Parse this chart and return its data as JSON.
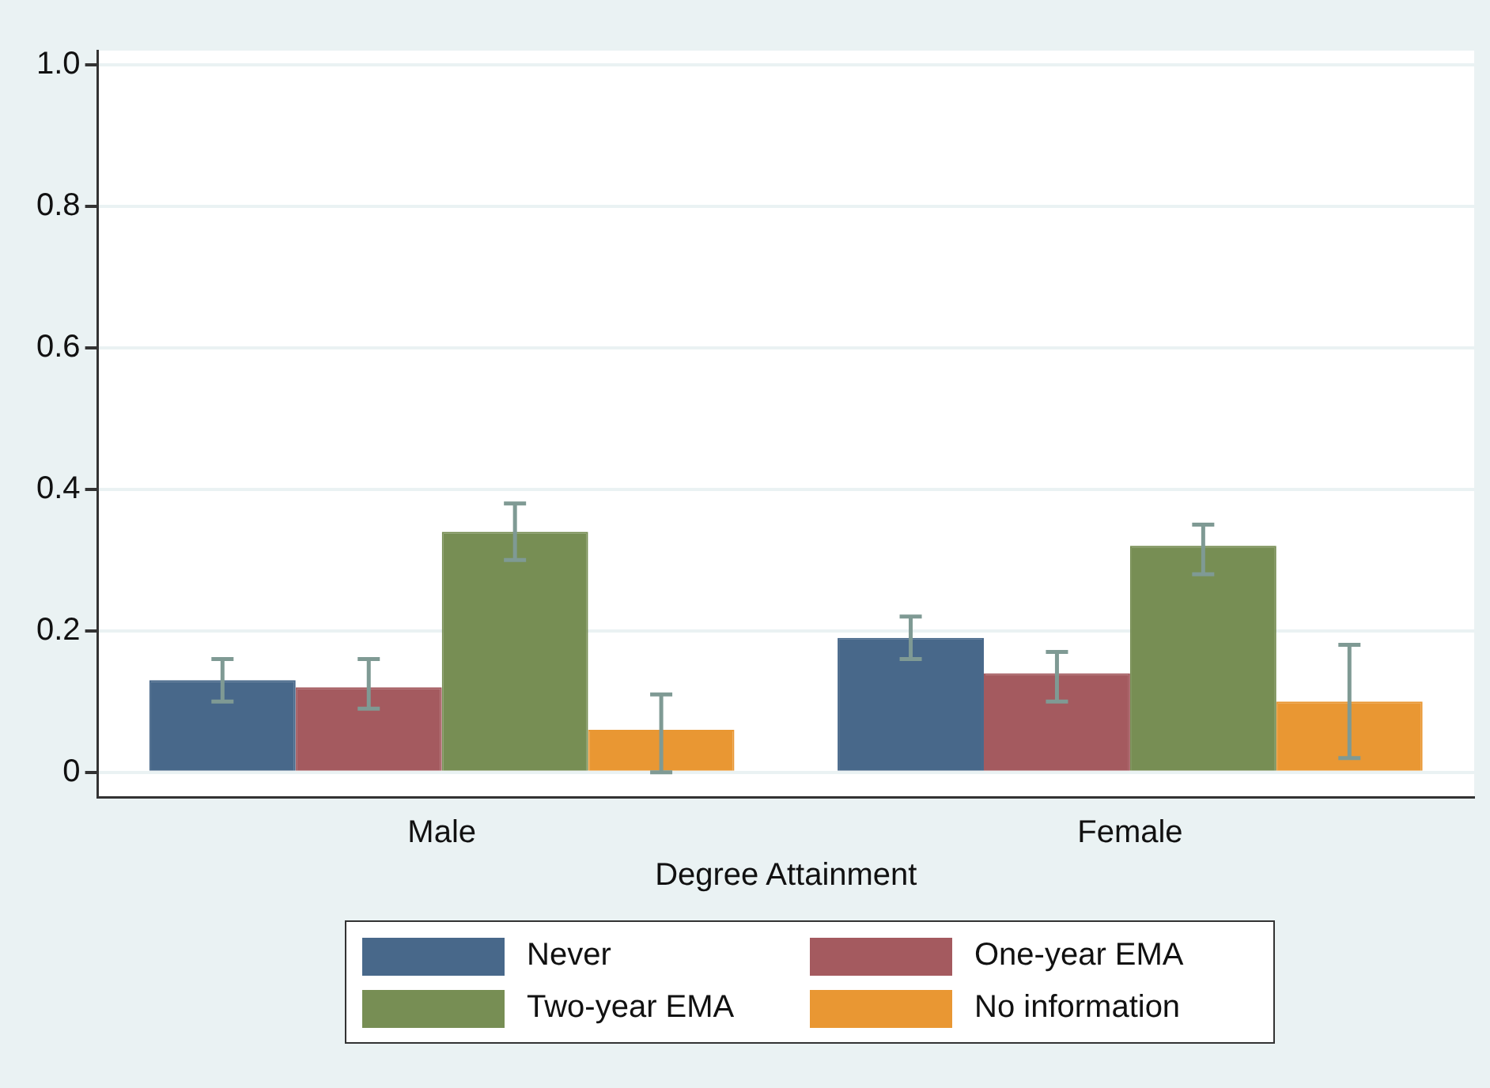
{
  "chart_data": {
    "type": "bar",
    "xlabel": "Degree Attainment",
    "categories": [
      "Male",
      "Female"
    ],
    "series": [
      {
        "name": "Never",
        "color": "#48688a",
        "values": [
          0.13,
          0.19
        ],
        "errors": [
          [
            0.1,
            0.16
          ],
          [
            0.16,
            0.22
          ]
        ]
      },
      {
        "name": "One-year EMA",
        "color": "#a45a5f",
        "values": [
          0.12,
          0.14
        ],
        "errors": [
          [
            0.09,
            0.16
          ],
          [
            0.1,
            0.17
          ]
        ]
      },
      {
        "name": "Two-year EMA",
        "color": "#778e54",
        "values": [
          0.34,
          0.32
        ],
        "errors": [
          [
            0.3,
            0.38
          ],
          [
            0.28,
            0.35
          ]
        ]
      },
      {
        "name": "No information",
        "color": "#e99733",
        "values": [
          0.06,
          0.1
        ],
        "errors": [
          [
            0.0,
            0.11
          ],
          [
            0.02,
            0.18
          ]
        ]
      }
    ],
    "ylim": [
      -0.035,
      1.02
    ],
    "yticks": [
      0,
      0.2,
      0.4,
      0.6,
      0.8,
      {
        "value": 1,
        "label": "1.0"
      }
    ],
    "grid": "y",
    "legend": "bottom"
  }
}
